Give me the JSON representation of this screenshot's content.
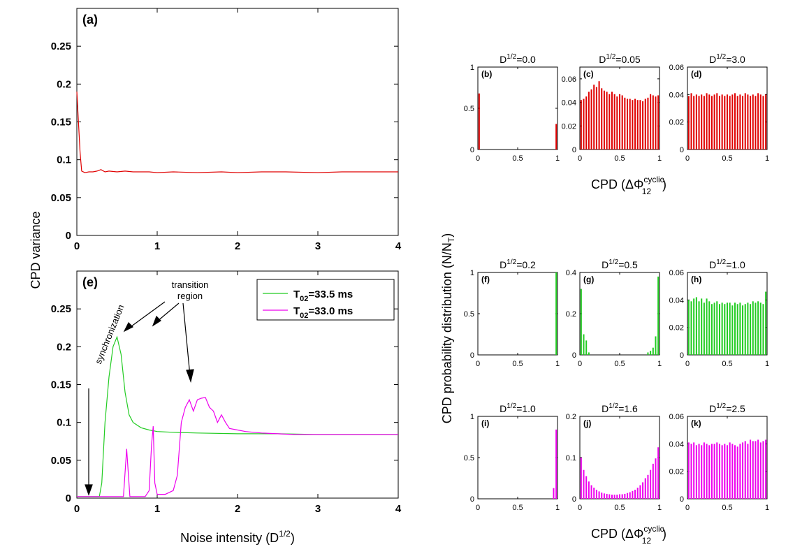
{
  "figure": {
    "shared_ylabel_left": "CPD variance",
    "shared_ylabel_right": "CPD probability distribution (N/N",
    "shared_ylabel_right_sub": "T",
    "shared_ylabel_right_close": ")",
    "xlabel_e": "Noise intensity (D",
    "xlabel_e_sup": "1/2",
    "xlabel_e_close": ")",
    "cpd_label": "CPD (",
    "cpd_phi": "ΔΦ",
    "cpd_sup": "cyclic",
    "cpd_sub": "12",
    "cpd_close": ")",
    "annotations": {
      "synchronization": "synchronization",
      "transition_1": "transition",
      "transition_2": "region"
    }
  },
  "colors": {
    "red": "#e00000",
    "green": "#22cc22",
    "magenta": "#ee00ee"
  },
  "chart_data": [
    {
      "id": "a",
      "type": "line",
      "panel_label": "(a)",
      "xlim": [
        0,
        4
      ],
      "ylim": [
        0,
        0.3
      ],
      "xticks": [
        "0",
        "1",
        "2",
        "3",
        "4"
      ],
      "yticks": [
        "0",
        "0.05",
        "0.1",
        "0.15",
        "0.2",
        "0.25"
      ],
      "series": [
        {
          "color": "red",
          "points": [
            [
              0,
              0.19
            ],
            [
              0.02,
              0.15
            ],
            [
              0.04,
              0.11
            ],
            [
              0.06,
              0.085
            ],
            [
              0.1,
              0.083
            ],
            [
              0.15,
              0.084
            ],
            [
              0.2,
              0.084
            ],
            [
              0.25,
              0.085
            ],
            [
              0.3,
              0.087
            ],
            [
              0.35,
              0.084
            ],
            [
              0.4,
              0.085
            ],
            [
              0.5,
              0.084
            ],
            [
              0.6,
              0.085
            ],
            [
              0.7,
              0.084
            ],
            [
              0.8,
              0.084
            ],
            [
              0.9,
              0.084
            ],
            [
              1.0,
              0.083
            ],
            [
              1.2,
              0.084
            ],
            [
              1.5,
              0.083
            ],
            [
              1.8,
              0.084
            ],
            [
              2.0,
              0.083
            ],
            [
              2.3,
              0.084
            ],
            [
              2.6,
              0.084
            ],
            [
              3.0,
              0.083
            ],
            [
              3.3,
              0.084
            ],
            [
              3.6,
              0.084
            ],
            [
              4.0,
              0.084
            ]
          ]
        }
      ]
    },
    {
      "id": "e",
      "type": "line",
      "panel_label": "(e)",
      "xlim": [
        0,
        4
      ],
      "ylim": [
        0,
        0.3
      ],
      "xticks": [
        "0",
        "1",
        "2",
        "3",
        "4"
      ],
      "yticks": [
        "0",
        "0.05",
        "0.1",
        "0.15",
        "0.2",
        "0.25"
      ],
      "series": [
        {
          "name": "T02=33.5 ms",
          "name_main": "T",
          "name_sub": "02",
          "name_rest": "=33.5 ms",
          "color": "green",
          "points": [
            [
              0,
              0.002
            ],
            [
              0.1,
              0.002
            ],
            [
              0.2,
              0.002
            ],
            [
              0.28,
              0.002
            ],
            [
              0.31,
              0.02
            ],
            [
              0.35,
              0.1
            ],
            [
              0.4,
              0.16
            ],
            [
              0.45,
              0.2
            ],
            [
              0.5,
              0.213
            ],
            [
              0.55,
              0.19
            ],
            [
              0.6,
              0.14
            ],
            [
              0.65,
              0.11
            ],
            [
              0.7,
              0.1
            ],
            [
              0.8,
              0.093
            ],
            [
              0.9,
              0.09
            ],
            [
              1.0,
              0.088
            ],
            [
              1.2,
              0.087
            ],
            [
              1.5,
              0.086
            ],
            [
              2.0,
              0.085
            ],
            [
              2.5,
              0.085
            ],
            [
              3.0,
              0.084
            ],
            [
              3.5,
              0.084
            ],
            [
              4.0,
              0.084
            ]
          ]
        },
        {
          "name": "T02=33.0 ms",
          "name_main": "T",
          "name_sub": "02",
          "name_rest": "=33.0 ms",
          "color": "magenta",
          "points": [
            [
              0,
              0.002
            ],
            [
              0.5,
              0.002
            ],
            [
              0.58,
              0.002
            ],
            [
              0.62,
              0.065
            ],
            [
              0.66,
              0.002
            ],
            [
              0.75,
              0.002
            ],
            [
              0.85,
              0.002
            ],
            [
              0.9,
              0.01
            ],
            [
              0.93,
              0.07
            ],
            [
              0.95,
              0.095
            ],
            [
              0.97,
              0.02
            ],
            [
              1.0,
              0.005
            ],
            [
              1.1,
              0.005
            ],
            [
              1.2,
              0.01
            ],
            [
              1.25,
              0.03
            ],
            [
              1.3,
              0.1
            ],
            [
              1.35,
              0.12
            ],
            [
              1.4,
              0.13
            ],
            [
              1.45,
              0.115
            ],
            [
              1.5,
              0.13
            ],
            [
              1.55,
              0.132
            ],
            [
              1.6,
              0.133
            ],
            [
              1.65,
              0.12
            ],
            [
              1.7,
              0.115
            ],
            [
              1.75,
              0.1
            ],
            [
              1.8,
              0.11
            ],
            [
              1.85,
              0.1
            ],
            [
              1.9,
              0.092
            ],
            [
              2.0,
              0.09
            ],
            [
              2.1,
              0.088
            ],
            [
              2.2,
              0.087
            ],
            [
              2.3,
              0.086
            ],
            [
              2.5,
              0.085
            ],
            [
              2.7,
              0.084
            ],
            [
              3.0,
              0.084
            ],
            [
              3.5,
              0.084
            ],
            [
              4.0,
              0.084
            ]
          ]
        }
      ],
      "legend_position": "top-right"
    },
    {
      "id": "b",
      "type": "bar",
      "panel_label": "(b)",
      "title_main": "D",
      "title_sup": "1/2",
      "title_val": "=0.0",
      "color": "red",
      "xlim": [
        0,
        1
      ],
      "ylim": [
        0,
        1
      ],
      "xticks": [
        "0",
        "0.5",
        "1"
      ],
      "yticks": [
        "0",
        "0.5",
        "1"
      ],
      "values": [
        0.68,
        0,
        0,
        0,
        0,
        0,
        0,
        0,
        0,
        0,
        0,
        0,
        0,
        0,
        0,
        0,
        0,
        0,
        0,
        0,
        0,
        0,
        0,
        0,
        0,
        0,
        0,
        0,
        0,
        0,
        0.31
      ]
    },
    {
      "id": "c",
      "type": "bar",
      "panel_label": "(c)",
      "title_main": "D",
      "title_sup": "1/2",
      "title_val": "=0.05",
      "color": "red",
      "xlim": [
        0,
        1
      ],
      "ylim": [
        0,
        0.07
      ],
      "xticks": [
        "0",
        "0.5",
        "1"
      ],
      "yticks": [
        "0",
        "0.02",
        "0.04",
        "0.06"
      ],
      "values": [
        0.042,
        0.043,
        0.045,
        0.049,
        0.051,
        0.055,
        0.053,
        0.058,
        0.052,
        0.05,
        0.049,
        0.047,
        0.049,
        0.047,
        0.045,
        0.047,
        0.046,
        0.044,
        0.043,
        0.043,
        0.042,
        0.043,
        0.042,
        0.042,
        0.041,
        0.043,
        0.044,
        0.047,
        0.046,
        0.045,
        0.046
      ]
    },
    {
      "id": "d",
      "type": "bar",
      "panel_label": "(d)",
      "title_main": "D",
      "title_sup": "1/2",
      "title_val": "=3.0",
      "color": "red",
      "xlim": [
        0,
        1
      ],
      "ylim": [
        0,
        0.06
      ],
      "xticks": [
        "0",
        "0.5",
        "1"
      ],
      "yticks": [
        "0",
        "0.02",
        "0.04",
        "0.06"
      ],
      "values": [
        0.039,
        0.041,
        0.039,
        0.04,
        0.039,
        0.04,
        0.039,
        0.041,
        0.04,
        0.039,
        0.04,
        0.041,
        0.039,
        0.04,
        0.039,
        0.04,
        0.039,
        0.04,
        0.041,
        0.039,
        0.04,
        0.039,
        0.041,
        0.04,
        0.039,
        0.04,
        0.039,
        0.041,
        0.04,
        0.039,
        0.04
      ]
    },
    {
      "id": "f",
      "type": "bar",
      "panel_label": "(f)",
      "title_main": "D",
      "title_sup": "1/2",
      "title_val": "=0.2",
      "color": "green",
      "xlim": [
        0,
        1
      ],
      "ylim": [
        0,
        1
      ],
      "xticks": [
        "0",
        "0.5",
        "1"
      ],
      "yticks": [
        "0",
        "0.5",
        "1"
      ],
      "values": [
        0,
        0,
        0,
        0,
        0,
        0,
        0,
        0,
        0,
        0,
        0,
        0,
        0,
        0,
        0,
        0,
        0,
        0,
        0,
        0,
        0,
        0,
        0,
        0,
        0,
        0,
        0,
        0,
        0,
        0,
        1.0
      ]
    },
    {
      "id": "g",
      "type": "bar",
      "panel_label": "(g)",
      "title_main": "D",
      "title_sup": "1/2",
      "title_val": "=0.5",
      "color": "green",
      "xlim": [
        0,
        1
      ],
      "ylim": [
        0,
        0.4
      ],
      "xticks": [
        "0",
        "0.5",
        "1"
      ],
      "yticks": [
        "0",
        "0.2",
        "0.4"
      ],
      "values": [
        0.32,
        0.1,
        0.07,
        0.012,
        0,
        0,
        0,
        0,
        0,
        0,
        0,
        0,
        0,
        0,
        0,
        0,
        0,
        0,
        0,
        0,
        0,
        0,
        0,
        0,
        0,
        0,
        0.012,
        0.02,
        0.035,
        0.09,
        0.38
      ]
    },
    {
      "id": "h",
      "type": "bar",
      "panel_label": "(h)",
      "title_main": "D",
      "title_sup": "1/2",
      "title_val": "=1.0",
      "color": "green",
      "xlim": [
        0,
        1
      ],
      "ylim": [
        0,
        0.06
      ],
      "xticks": [
        "0",
        "0.5",
        "1"
      ],
      "yticks": [
        "0",
        "0.02",
        "0.04",
        "0.06"
      ],
      "values": [
        0.04,
        0.039,
        0.041,
        0.042,
        0.039,
        0.041,
        0.038,
        0.041,
        0.039,
        0.037,
        0.038,
        0.039,
        0.037,
        0.038,
        0.037,
        0.038,
        0.038,
        0.036,
        0.038,
        0.037,
        0.038,
        0.036,
        0.037,
        0.038,
        0.037,
        0.039,
        0.038,
        0.039,
        0.038,
        0.037,
        0.046
      ]
    },
    {
      "id": "i",
      "type": "bar",
      "panel_label": "(i)",
      "title_main": "D",
      "title_sup": "1/2",
      "title_val": "=1.0",
      "color": "magenta",
      "xlim": [
        0,
        1
      ],
      "ylim": [
        0,
        1
      ],
      "xticks": [
        "0",
        "0.5",
        "1"
      ],
      "yticks": [
        "0",
        "0.5",
        "1"
      ],
      "values": [
        0,
        0,
        0,
        0,
        0,
        0,
        0,
        0,
        0,
        0,
        0,
        0,
        0,
        0,
        0,
        0,
        0,
        0,
        0,
        0,
        0,
        0,
        0,
        0,
        0,
        0,
        0,
        0,
        0,
        0.13,
        0.84
      ]
    },
    {
      "id": "j",
      "type": "bar",
      "panel_label": "(j)",
      "title_main": "D",
      "title_sup": "1/2",
      "title_val": "=1.6",
      "color": "magenta",
      "xlim": [
        0,
        1
      ],
      "ylim": [
        0,
        0.2
      ],
      "xticks": [
        "0",
        "0.5",
        "1"
      ],
      "yticks": [
        "0",
        "0.1",
        "0.2"
      ],
      "values": [
        0.1,
        0.07,
        0.055,
        0.042,
        0.033,
        0.027,
        0.022,
        0.018,
        0.015,
        0.013,
        0.012,
        0.011,
        0.01,
        0.01,
        0.01,
        0.011,
        0.011,
        0.012,
        0.014,
        0.016,
        0.019,
        0.022,
        0.027,
        0.033,
        0.04,
        0.05,
        0.058,
        0.07,
        0.085,
        0.098,
        0.125
      ]
    },
    {
      "id": "k",
      "type": "bar",
      "panel_label": "(k)",
      "title_main": "D",
      "title_sup": "1/2",
      "title_val": "=2.5",
      "color": "magenta",
      "xlim": [
        0,
        1
      ],
      "ylim": [
        0,
        0.06
      ],
      "xticks": [
        "0",
        "0.5",
        "1"
      ],
      "yticks": [
        "0",
        "0.02",
        "0.04",
        "0.06"
      ],
      "values": [
        0.041,
        0.04,
        0.041,
        0.039,
        0.04,
        0.039,
        0.041,
        0.04,
        0.039,
        0.04,
        0.04,
        0.041,
        0.04,
        0.039,
        0.04,
        0.039,
        0.041,
        0.04,
        0.039,
        0.038,
        0.04,
        0.041,
        0.042,
        0.04,
        0.043,
        0.042,
        0.042,
        0.043,
        0.041,
        0.042,
        0.043
      ]
    }
  ]
}
